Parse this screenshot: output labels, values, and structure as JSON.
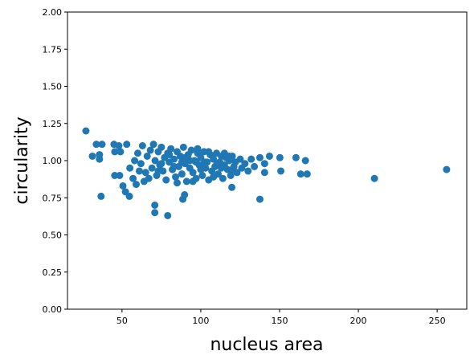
{
  "chart_data": {
    "type": "scatter",
    "x_label": "nucleus area",
    "y_label": "circularity",
    "color": "#1f77b4",
    "xlim": [
      15.4,
      268.8
    ],
    "ylim": [
      0,
      2
    ],
    "xticks": [
      50,
      100,
      150,
      200,
      250
    ],
    "yticks": [
      {
        "value": 0,
        "label": "0.00"
      },
      {
        "value": 0.25,
        "label": "0.25"
      },
      {
        "value": 0.5,
        "label": "0.50"
      },
      {
        "value": 0.75,
        "label": "0.75"
      },
      {
        "value": 1,
        "label": "1.00"
      },
      {
        "value": 1.25,
        "label": "1.25"
      },
      {
        "value": 1.5,
        "label": "1.50"
      },
      {
        "value": 1.75,
        "label": "1.75"
      },
      {
        "value": 2,
        "label": "2.00"
      }
    ],
    "x": [
      27.1,
      31.2,
      33.7,
      37.3,
      35.7,
      35.7,
      36.7,
      44.9,
      48,
      53,
      45.4,
      49,
      45.4,
      48.5,
      50.6,
      52.2,
      54.7,
      70.8,
      70.8,
      79,
      88.6,
      89.7,
      119.7,
      137.5,
      150.2,
      150.8,
      160.4,
      163.4,
      166.4,
      167.5,
      210.2,
      256,
      143.6,
      140.5,
      140.5,
      137.5,
      60,
      62,
      63,
      65,
      66,
      67,
      68,
      69,
      70,
      71,
      72,
      73,
      74,
      75,
      76,
      77,
      78,
      79,
      80,
      81,
      82,
      83,
      84,
      85,
      86,
      87,
      88,
      89,
      90,
      91,
      92,
      93,
      94,
      95,
      96,
      97,
      98,
      99,
      100,
      101,
      102,
      103,
      104,
      105,
      106,
      107,
      108,
      109,
      110,
      111,
      112,
      113,
      114,
      115,
      116,
      117,
      118,
      119,
      120,
      121,
      122,
      123,
      125,
      126,
      128,
      130,
      132,
      134,
      55,
      57,
      58,
      59,
      61,
      64,
      85,
      95,
      100,
      105,
      110,
      75,
      80,
      90,
      115,
      120,
      88,
      98,
      103,
      108,
      93,
      83,
      73,
      113,
      118,
      97,
      102
    ],
    "y": [
      1.2,
      1.03,
      1.11,
      1.11,
      1.01,
      1.04,
      0.76,
      1.11,
      1.1,
      1.11,
      1.06,
      1.06,
      0.9,
      0.9,
      0.83,
      0.79,
      0.76,
      0.7,
      0.65,
      0.63,
      0.74,
      0.77,
      0.82,
      0.74,
      1.02,
      0.93,
      1.02,
      0.91,
      1.0,
      0.91,
      0.88,
      0.94,
      1.03,
      0.98,
      0.92,
      1.02,
      1.05,
      0.98,
      1.1,
      0.92,
      1.03,
      0.88,
      1.07,
      0.95,
      1.11,
      1.0,
      0.9,
      1.06,
      0.97,
      1.09,
      0.93,
      1.02,
      0.87,
      1.05,
      0.99,
      1.08,
      0.94,
      1.01,
      0.89,
      1.06,
      0.96,
      1.03,
      0.91,
      1.09,
      0.98,
      0.86,
      1.04,
      0.95,
      1.07,
      0.92,
      1.0,
      0.88,
      1.05,
      0.97,
      1.02,
      0.9,
      1.06,
      0.95,
      0.99,
      0.87,
      1.04,
      0.93,
      1.01,
      0.96,
      1.05,
      0.91,
      0.99,
      1.03,
      0.88,
      0.97,
      1.02,
      0.94,
      1.0,
      0.9,
      1.03,
      0.96,
      0.99,
      0.92,
      1.01,
      0.95,
      0.98,
      0.93,
      1.01,
      0.96,
      0.95,
      0.88,
      1.0,
      0.84,
      0.93,
      0.86,
      0.85,
      0.86,
      0.94,
      1.06,
      0.97,
      0.98,
      1.04,
      1.02,
      1.05,
      0.94,
      0.99,
      1.08,
      0.99,
      0.89,
      1.0,
      0.96,
      0.93,
      0.95,
      1.03,
      0.99,
      0.98
    ]
  }
}
